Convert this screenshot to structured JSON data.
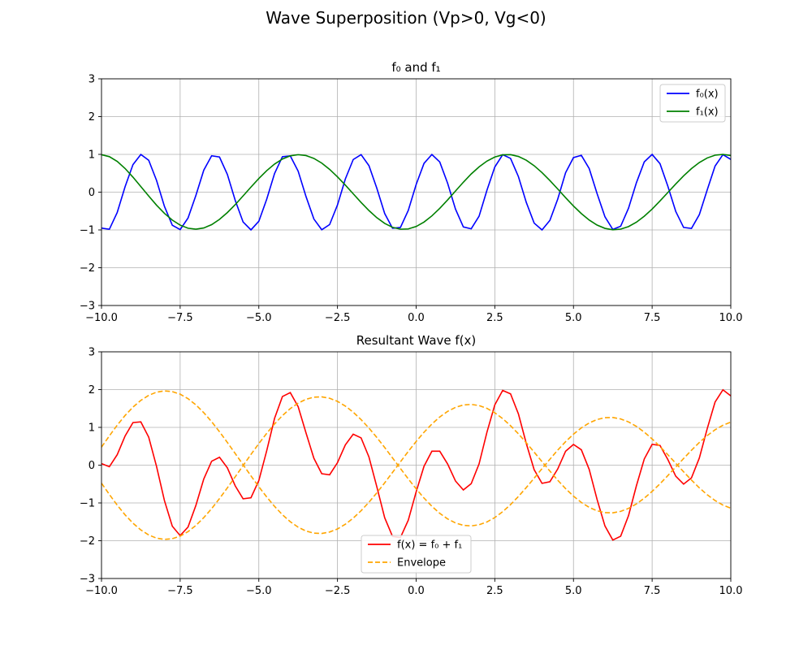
{
  "figure": {
    "title": "Wave Superposition (Vp>0, Vg<0)"
  },
  "colors": {
    "f0": "#0000ff",
    "f1": "#008000",
    "resultant": "#ff0000",
    "envelope": "#ffa500",
    "grid": "#b0b0b0"
  },
  "chart_data": [
    {
      "type": "line",
      "title": "f₀ and f₁",
      "xlabel": "",
      "ylabel": "",
      "xlim": [
        -10,
        10
      ],
      "ylim": [
        -3,
        3
      ],
      "grid": true,
      "legend_position": "top-right",
      "xticks": [
        -10,
        -7.5,
        -5,
        -2.5,
        0,
        2.5,
        5,
        7.5,
        10
      ],
      "xtick_labels": [
        "−10.0",
        "−7.5",
        "−5.0",
        "−2.5",
        "0.0",
        "2.5",
        "5.0",
        "7.5",
        "10.0"
      ],
      "yticks": [
        -3,
        -2,
        -1,
        0,
        1,
        2,
        3
      ],
      "ytick_labels": [
        "−3",
        "−2",
        "−1",
        "0",
        "1",
        "2",
        "3"
      ],
      "series": [
        {
          "name": "f₀(x)",
          "color": "#0000ff",
          "style": "solid",
          "x": [
            -10.0,
            -9.75,
            -9.5,
            -9.25,
            -9.0,
            -8.75,
            -8.5,
            -8.25,
            -8.0,
            -7.75,
            -7.5,
            -7.25,
            -7.0,
            -6.75,
            -6.5,
            -6.25,
            -6.0,
            -5.75,
            -5.5,
            -5.25,
            -5.0,
            -4.75,
            -4.5,
            -4.25,
            -4.0,
            -3.75,
            -3.5,
            -3.25,
            -3.0,
            -2.75,
            -2.5,
            -2.25,
            -2.0,
            -1.75,
            -1.5,
            -1.25,
            -1.0,
            -0.75,
            -0.5,
            -0.25,
            0.0,
            0.25,
            0.5,
            0.75,
            1.0,
            1.25,
            1.5,
            1.75,
            2.0,
            2.25,
            2.5,
            2.75,
            3.0,
            3.25,
            3.5,
            3.75,
            4.0,
            4.25,
            4.5,
            4.75,
            5.0,
            5.25,
            5.5,
            5.75,
            6.0,
            6.25,
            6.5,
            6.75,
            7.0,
            7.25,
            7.5,
            7.75,
            8.0,
            8.25,
            8.5,
            8.75,
            9.0,
            9.25,
            9.5,
            9.75,
            10.0
          ],
          "y": [
            -0.951,
            -0.982,
            -0.536,
            0.146,
            0.729,
            0.998,
            0.844,
            0.309,
            -0.376,
            -0.876,
            -0.992,
            -0.685,
            -0.085,
            0.581,
            0.963,
            0.93,
            0.469,
            -0.218,
            -0.79,
            -0.998,
            -0.771,
            -0.189,
            0.495,
            0.939,
            0.959,
            0.556,
            -0.117,
            -0.711,
            -0.995,
            -0.858,
            -0.338,
            0.35,
            0.863,
            0.994,
            0.702,
            0.105,
            -0.565,
            -0.956,
            -0.935,
            -0.483,
            0.202,
            0.762,
            0.997,
            0.799,
            0.237,
            -0.448,
            -0.92,
            -0.97,
            -0.636,
            0.051,
            0.666,
            0.991,
            0.894,
            0.412,
            -0.27,
            -0.819,
            -1.0,
            -0.748,
            -0.183,
            0.515,
            0.915,
            0.975,
            0.624,
            -0.037,
            -0.651,
            -0.987,
            -0.902,
            -0.424,
            0.249,
            0.801,
            0.998,
            0.754,
            0.155,
            -0.509,
            -0.934,
            -0.96,
            -0.595,
            0.059,
            0.691,
            0.994,
            0.866
          ]
        },
        {
          "name": "f₁(x)",
          "color": "#008000",
          "style": "solid",
          "x": [
            -10.0,
            -9.75,
            -9.5,
            -9.25,
            -9.0,
            -8.75,
            -8.5,
            -8.25,
            -8.0,
            -7.75,
            -7.5,
            -7.25,
            -7.0,
            -6.75,
            -6.5,
            -6.25,
            -6.0,
            -5.75,
            -5.5,
            -5.25,
            -5.0,
            -4.75,
            -4.5,
            -4.25,
            -4.0,
            -3.75,
            -3.5,
            -3.25,
            -3.0,
            -2.75,
            -2.5,
            -2.25,
            -2.0,
            -1.75,
            -1.5,
            -1.25,
            -1.0,
            -0.75,
            -0.5,
            -0.25,
            0.0,
            0.25,
            0.5,
            0.75,
            1.0,
            1.25,
            1.5,
            1.75,
            2.0,
            2.25,
            2.5,
            2.75,
            3.0,
            3.25,
            3.5,
            3.75,
            4.0,
            4.25,
            4.5,
            4.75,
            5.0,
            5.25,
            5.5,
            5.75,
            6.0,
            6.25,
            6.5,
            6.75,
            7.0,
            7.25,
            7.5,
            7.75,
            8.0,
            8.25,
            8.5,
            8.75,
            9.0,
            9.25,
            9.5,
            9.75,
            10.0
          ],
          "y": [
            0.992,
            0.94,
            0.813,
            0.626,
            0.397,
            0.148,
            -0.103,
            -0.345,
            -0.561,
            -0.74,
            -0.873,
            -0.954,
            -0.98,
            -0.948,
            -0.86,
            -0.721,
            -0.54,
            -0.33,
            -0.1,
            0.135,
            0.362,
            0.569,
            0.744,
            0.877,
            0.961,
            0.992,
            0.969,
            0.893,
            0.769,
            0.603,
            0.405,
            0.186,
            -0.043,
            -0.272,
            -0.487,
            -0.676,
            -0.827,
            -0.931,
            -0.981,
            -0.973,
            -0.909,
            -0.791,
            -0.628,
            -0.429,
            -0.206,
            0.029,
            0.263,
            0.481,
            0.67,
            0.822,
            0.93,
            0.988,
            0.993,
            0.945,
            0.845,
            0.7,
            0.518,
            0.308,
            0.083,
            -0.146,
            -0.366,
            -0.567,
            -0.738,
            -0.871,
            -0.958,
            -0.995,
            -0.979,
            -0.911,
            -0.795,
            -0.637,
            -0.447,
            -0.233,
            -0.008,
            0.217,
            0.432,
            0.624,
            0.784,
            0.905,
            0.979,
            1.0,
            0.968
          ]
        }
      ]
    },
    {
      "type": "line",
      "title": "Resultant Wave f(x)",
      "xlabel": "",
      "ylabel": "",
      "xlim": [
        -10,
        10
      ],
      "ylim": [
        -3,
        3
      ],
      "grid": true,
      "legend_position": "lower-center",
      "xticks": [
        -10,
        -7.5,
        -5,
        -2.5,
        0,
        2.5,
        5,
        7.5,
        10
      ],
      "xtick_labels": [
        "−10.0",
        "−7.5",
        "−5.0",
        "−2.5",
        "0.0",
        "2.5",
        "5.0",
        "7.5",
        "10.0"
      ],
      "yticks": [
        -3,
        -2,
        -1,
        0,
        1,
        2,
        3
      ],
      "ytick_labels": [
        "−3",
        "−2",
        "−1",
        "0",
        "1",
        "2",
        "3"
      ],
      "series": [
        {
          "name": "f(x) = f₀ + f₁",
          "color": "#ff0000",
          "style": "solid",
          "x": [
            -10.0,
            -9.75,
            -9.5,
            -9.25,
            -9.0,
            -8.75,
            -8.5,
            -8.25,
            -8.0,
            -7.75,
            -7.5,
            -7.25,
            -7.0,
            -6.75,
            -6.5,
            -6.25,
            -6.0,
            -5.75,
            -5.5,
            -5.25,
            -5.0,
            -4.75,
            -4.5,
            -4.25,
            -4.0,
            -3.75,
            -3.5,
            -3.25,
            -3.0,
            -2.75,
            -2.5,
            -2.25,
            -2.0,
            -1.75,
            -1.5,
            -1.25,
            -1.0,
            -0.75,
            -0.5,
            -0.25,
            0.0,
            0.25,
            0.5,
            0.75,
            1.0,
            1.25,
            1.5,
            1.75,
            2.0,
            2.25,
            2.5,
            2.75,
            3.0,
            3.25,
            3.5,
            3.75,
            4.0,
            4.25,
            4.5,
            4.75,
            5.0,
            5.25,
            5.5,
            5.75,
            6.0,
            6.25,
            6.5,
            6.75,
            7.0,
            7.25,
            7.5,
            7.75,
            8.0,
            8.25,
            8.5,
            8.75,
            9.0,
            9.25,
            9.5,
            9.75,
            10.0
          ],
          "y": [
            0.041,
            -0.042,
            0.277,
            0.772,
            1.126,
            1.146,
            0.741,
            -0.036,
            -0.937,
            -1.616,
            -1.865,
            -1.639,
            -1.065,
            -0.367,
            0.103,
            0.209,
            -0.071,
            -0.548,
            -0.89,
            -0.863,
            -0.409,
            0.38,
            1.239,
            1.816,
            1.92,
            1.548,
            0.852,
            0.182,
            -0.226,
            -0.255,
            0.067,
            0.536,
            0.82,
            0.722,
            0.215,
            -0.571,
            -1.392,
            -1.887,
            -1.916,
            -1.456,
            -0.707,
            -0.029,
            0.369,
            0.37,
            0.031,
            -0.419,
            -0.657,
            -0.489,
            0.034,
            0.873,
            1.596,
            1.979,
            1.887,
            1.357,
            0.575,
            -0.119,
            -0.482,
            -0.44,
            -0.1,
            0.369,
            0.549,
            0.408,
            -0.114,
            -0.908,
            -1.609,
            -1.982,
            -1.881,
            -1.335,
            -0.546,
            0.164,
            0.551,
            0.521,
            0.147,
            -0.292,
            -0.502,
            -0.336,
            0.189,
            0.964,
            1.67,
            1.994,
            1.834
          ]
        },
        {
          "name": "Envelope",
          "color": "#ffa500",
          "style": "dashed",
          "x": [
            -10.0,
            -9.75,
            -9.5,
            -9.25,
            -9.0,
            -8.75,
            -8.5,
            -8.25,
            -8.0,
            -7.75,
            -7.5,
            -7.25,
            -7.0,
            -6.75,
            -6.5,
            -6.25,
            -6.0,
            -5.75,
            -5.5,
            -5.25,
            -5.0,
            -4.75,
            -4.5,
            -4.25,
            -4.0,
            -3.75,
            -3.5,
            -3.25,
            -3.0,
            -2.75,
            -2.5,
            -2.25,
            -2.0,
            -1.75,
            -1.5,
            -1.25,
            -1.0,
            -0.75,
            -0.5,
            -0.25,
            0.0,
            0.25,
            0.5,
            0.75,
            1.0,
            1.25,
            1.5,
            1.75,
            2.0,
            2.25,
            2.5,
            2.75,
            3.0,
            3.25,
            3.5,
            3.75,
            4.0,
            4.25,
            4.5,
            4.75,
            5.0,
            5.25,
            5.5,
            5.75,
            6.0,
            6.25,
            6.5,
            6.75,
            7.0,
            7.25,
            7.5,
            7.75,
            8.0,
            8.25,
            8.5,
            8.75,
            9.0,
            9.25,
            9.5,
            9.75,
            10.0
          ],
          "y": [
            0.478,
            0.775,
            1.059,
            1.316,
            1.536,
            1.715,
            1.848,
            1.932,
            1.966,
            1.947,
            1.878,
            1.76,
            1.595,
            1.39,
            1.151,
            0.885,
            0.601,
            0.307,
            0.012,
            -0.283,
            -0.571,
            -0.842,
            -1.091,
            -1.312,
            -1.497,
            -1.642,
            -1.744,
            -1.8,
            -1.808,
            -1.77,
            -1.688,
            -1.564,
            -1.402,
            -1.206,
            -0.981,
            -0.733,
            -0.467,
            -0.191,
            0.088,
            0.363,
            0.627,
            0.871,
            1.089,
            1.275,
            1.423,
            1.53,
            1.592,
            1.608,
            1.578,
            1.503,
            1.387,
            1.232,
            1.044,
            0.829,
            0.593,
            0.345,
            0.093,
            -0.157,
            -0.399,
            -0.622,
            -0.82,
            -0.987,
            -1.117,
            -1.208,
            -1.256,
            -1.261,
            -1.223,
            -1.144,
            -1.026,
            -0.874,
            -0.694,
            -0.492,
            -0.275,
            -0.05,
            0.176,
            0.395,
            0.6,
            0.783,
            0.937,
            1.057,
            1.14
          ]
        },
        {
          "name": "",
          "color": "#ffa500",
          "style": "dashed",
          "x": [
            -10.0,
            -9.75,
            -9.5,
            -9.25,
            -9.0,
            -8.75,
            -8.5,
            -8.25,
            -8.0,
            -7.75,
            -7.5,
            -7.25,
            -7.0,
            -6.75,
            -6.5,
            -6.25,
            -6.0,
            -5.75,
            -5.5,
            -5.25,
            -5.0,
            -4.75,
            -4.5,
            -4.25,
            -4.0,
            -3.75,
            -3.5,
            -3.25,
            -3.0,
            -2.75,
            -2.5,
            -2.25,
            -2.0,
            -1.75,
            -1.5,
            -1.25,
            -1.0,
            -0.75,
            -0.5,
            -0.25,
            0.0,
            0.25,
            0.5,
            0.75,
            1.0,
            1.25,
            1.5,
            1.75,
            2.0,
            2.25,
            2.5,
            2.75,
            3.0,
            3.25,
            3.5,
            3.75,
            4.0,
            4.25,
            4.5,
            4.75,
            5.0,
            5.25,
            5.5,
            5.75,
            6.0,
            6.25,
            6.5,
            6.75,
            7.0,
            7.25,
            7.5,
            7.75,
            8.0,
            8.25,
            8.5,
            8.75,
            9.0,
            9.25,
            9.5,
            9.75,
            10.0
          ],
          "y": [
            -0.478,
            -0.775,
            -1.059,
            -1.316,
            -1.536,
            -1.715,
            -1.848,
            -1.932,
            -1.966,
            -1.947,
            -1.878,
            -1.76,
            -1.595,
            -1.39,
            -1.151,
            -0.885,
            -0.601,
            -0.307,
            -0.012,
            0.283,
            0.571,
            0.842,
            1.091,
            1.312,
            1.497,
            1.642,
            1.744,
            1.8,
            1.808,
            1.77,
            1.688,
            1.564,
            1.402,
            1.206,
            0.981,
            0.733,
            0.467,
            0.191,
            -0.088,
            -0.363,
            -0.627,
            -0.871,
            -1.089,
            -1.275,
            -1.423,
            -1.53,
            -1.592,
            -1.608,
            -1.578,
            -1.503,
            -1.387,
            -1.232,
            -1.044,
            -0.829,
            -0.593,
            -0.345,
            -0.093,
            0.157,
            0.399,
            0.622,
            0.82,
            0.987,
            1.117,
            1.208,
            1.256,
            1.261,
            1.223,
            1.144,
            1.026,
            0.874,
            0.694,
            0.492,
            0.275,
            0.05,
            -0.176,
            -0.395,
            -0.6,
            -0.783,
            -0.937,
            -1.057,
            -1.14
          ]
        }
      ]
    }
  ]
}
